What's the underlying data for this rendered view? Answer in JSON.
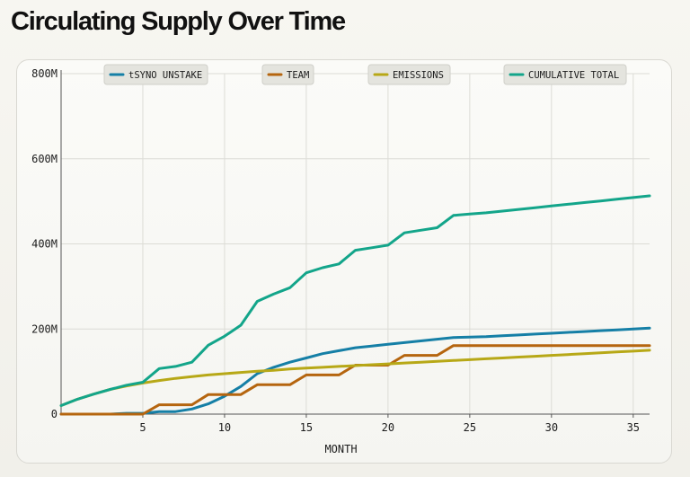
{
  "title": "Circulating Supply Over Time",
  "chart_data": {
    "type": "line",
    "title": "Circulating Supply Over Time",
    "xlabel": "MONTH",
    "ylabel": "",
    "xlim": [
      0,
      36
    ],
    "ylim": [
      0,
      800
    ],
    "x_ticks": [
      5,
      10,
      15,
      20,
      25,
      30,
      35
    ],
    "x_tick_labels": [
      "5",
      "10",
      "15",
      "20",
      "25",
      "30",
      "35"
    ],
    "y_ticks": [
      0,
      200,
      400,
      600,
      800
    ],
    "y_tick_labels": [
      "0",
      "200M",
      "400M",
      "600M",
      "800M"
    ],
    "grid": true,
    "legend_position": "top",
    "x": [
      0,
      1,
      2,
      3,
      4,
      5,
      6,
      7,
      8,
      9,
      10,
      11,
      12,
      13,
      14,
      15,
      16,
      17,
      18,
      19,
      20,
      21,
      22,
      23,
      24,
      25,
      26,
      27,
      28,
      29,
      30,
      31,
      32,
      33,
      34,
      35,
      36
    ],
    "series": [
      {
        "name": "tSYNO UNSTAKE",
        "color": "#157fa6",
        "values": [
          0,
          0,
          0,
          0,
          2,
          2,
          6,
          6,
          12,
          24,
          42,
          65,
          95,
          110,
          122,
          132,
          142,
          149,
          156,
          160,
          164,
          168,
          172,
          176,
          180,
          181,
          182,
          184,
          186,
          188,
          190,
          192,
          194,
          196,
          198,
          200,
          202
        ]
      },
      {
        "name": "TEAM",
        "color": "#b5650f",
        "values": [
          0,
          0,
          0,
          0,
          0,
          0,
          22,
          22,
          22,
          46,
          46,
          46,
          69,
          69,
          69,
          92,
          92,
          92,
          115,
          115,
          115,
          138,
          138,
          138,
          161,
          161,
          161,
          161,
          161,
          161,
          161,
          161,
          161,
          161,
          161,
          161,
          161
        ]
      },
      {
        "name": "EMISSIONS",
        "color": "#b7a817",
        "values": [
          20,
          35,
          47,
          58,
          66,
          73,
          79,
          84,
          88,
          92,
          95,
          98,
          101,
          103,
          106,
          108,
          110,
          112,
          114,
          116,
          118,
          120,
          122,
          124,
          126,
          128,
          130,
          132,
          134,
          136,
          138,
          140,
          142,
          144,
          146,
          148,
          150
        ]
      },
      {
        "name": "CUMULATIVE TOTAL",
        "color": "#13a58a",
        "values": [
          20,
          35,
          47,
          58,
          68,
          75,
          107,
          112,
          122,
          162,
          183,
          209,
          265,
          282,
          297,
          332,
          344,
          353,
          385,
          391,
          397,
          426,
          432,
          438,
          467,
          470,
          473,
          477,
          481,
          485,
          489,
          493,
          497,
          501,
          505,
          509,
          513
        ]
      }
    ]
  }
}
